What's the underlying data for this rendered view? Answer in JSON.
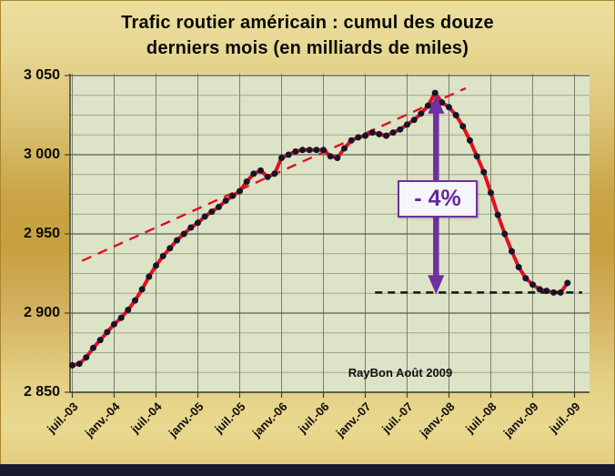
{
  "title": {
    "line1": "Trafic routier américain : cumul  des douze",
    "line2": "derniers mois  (en milliards de miles)"
  },
  "watermark": "RayBon Août 2009",
  "annotation": {
    "label": "- 4%"
  },
  "colors": {
    "series_red": "#e0101f",
    "marker": "#15152b",
    "purple": "#7030a0",
    "plot_background": "#dde3c6",
    "slide_gold": "#c9a344",
    "bottom_bar": "#1a1a31"
  },
  "chart_data": {
    "type": "line",
    "title": "Trafic routier américain : cumul des douze derniers mois (en milliards de miles)",
    "xlabel": "",
    "ylabel": "",
    "ylim": [
      2850,
      3050
    ],
    "y_major_step": 50,
    "y_minor_step": 12.5,
    "grid": true,
    "legend": "none",
    "plot_bg": "#dde3c6",
    "marker_color": "#15152b",
    "y_tick_labels": [
      "3 050",
      "3 000",
      "2 950",
      "2 900",
      "2 850"
    ],
    "x_tick_labels": [
      "juil.-03",
      "janv.-04",
      "juil.-04",
      "janv.-05",
      "juil.-05",
      "janv.-06",
      "juil.-06",
      "janv.-07",
      "juil.-07",
      "janv.-08",
      "juil.-08",
      "janv.-09",
      "juil.-09"
    ],
    "x": [
      "juil.-03",
      "août-03",
      "sept.-03",
      "oct.-03",
      "nov.-03",
      "déc.-03",
      "janv.-04",
      "févr.-04",
      "mars-04",
      "avr.-04",
      "mai-04",
      "juin-04",
      "juil.-04",
      "août-04",
      "sept.-04",
      "oct.-04",
      "nov.-04",
      "déc.-04",
      "janv.-05",
      "févr.-05",
      "mars-05",
      "avr.-05",
      "mai-05",
      "juin-05",
      "juil.-05",
      "août-05",
      "sept.-05",
      "oct.-05",
      "nov.-05",
      "déc.-05",
      "janv.-06",
      "févr.-06",
      "mars-06",
      "avr.-06",
      "mai-06",
      "juin-06",
      "juil.-06",
      "août-06",
      "sept.-06",
      "oct.-06",
      "nov.-06",
      "déc.-06",
      "janv.-07",
      "févr.-07",
      "mars-07",
      "avr.-07",
      "mai-07",
      "juin-07",
      "juil.-07",
      "août-07",
      "sept.-07",
      "oct.-07",
      "nov.-07",
      "déc.-07",
      "janv.-08",
      "févr.-08",
      "mars-08",
      "avr.-08",
      "mai-08",
      "juin-08",
      "juil.-08",
      "août-08",
      "sept.-08",
      "oct.-08",
      "nov.-08",
      "déc.-08",
      "janv.-09",
      "févr.-09",
      "mars-09",
      "avr.-09",
      "mai-09",
      "juin-09"
    ],
    "series": [
      {
        "name": "Trafic routier américain (cumul 12 mois, milliards de miles)",
        "color": "#e0101f",
        "values": [
          2867,
          2868,
          2872,
          2878,
          2883,
          2888,
          2893,
          2897,
          2902,
          2908,
          2915,
          2923,
          2930,
          2936,
          2941,
          2946,
          2950,
          2954,
          2957,
          2961,
          2964,
          2967,
          2971,
          2974,
          2977,
          2983,
          2988,
          2990,
          2986,
          2988,
          2998,
          3000,
          3002,
          3003,
          3003,
          3003,
          3003,
          2999,
          2998,
          3004,
          3009,
          3011,
          3012,
          3014,
          3013,
          3012,
          3014,
          3016,
          3019,
          3022,
          3026,
          3031,
          3039,
          3033,
          3030,
          3025,
          3018,
          3009,
          2999,
          2989,
          2976,
          2962,
          2950,
          2939,
          2929,
          2922,
          2918,
          2915,
          2914,
          2913,
          2913,
          2919
        ]
      }
    ],
    "trendline": {
      "style": "dashed",
      "color": "#e0101f",
      "from": {
        "month_index": 1.4,
        "value": 2933
      },
      "to": {
        "month_index": 56.4,
        "value": 3042
      }
    },
    "baseline": {
      "style": "dashed",
      "color": "#111111",
      "value": 2913,
      "from_month_index": 43.4,
      "to_month_index": 73.1
    },
    "drop_arrow": {
      "type": "double-arrow",
      "month_index": 52.15,
      "from_value": 3038,
      "to_value": 2913,
      "color": "#7030a0",
      "label": "- 4%"
    },
    "peak": {
      "month": "nov.-07",
      "value": 3039
    },
    "trough": {
      "month": "mai-09",
      "value": 2913
    }
  }
}
